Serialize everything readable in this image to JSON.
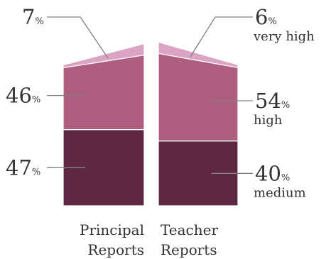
{
  "chart_data": {
    "type": "bar",
    "stacked": true,
    "categories": [
      "Principal Reports",
      "Teacher Reports"
    ],
    "category_lines": [
      [
        "Principal",
        "Reports"
      ],
      [
        "Teacher",
        "Reports"
      ]
    ],
    "series": [
      {
        "name": "medium",
        "values": [
          47,
          40
        ],
        "color": "#5f2842"
      },
      {
        "name": "high",
        "values": [
          46,
          54
        ],
        "color": "#ae5f80"
      },
      {
        "name": "very high",
        "values": [
          7,
          6
        ],
        "color": "#dba4c4"
      }
    ],
    "value_labels": {
      "Principal Reports": [
        "47",
        "46",
        "7"
      ],
      "Teacher Reports": [
        "40",
        "54",
        "6"
      ]
    },
    "unit_suffix": "%",
    "ylim": [
      0,
      100
    ]
  }
}
